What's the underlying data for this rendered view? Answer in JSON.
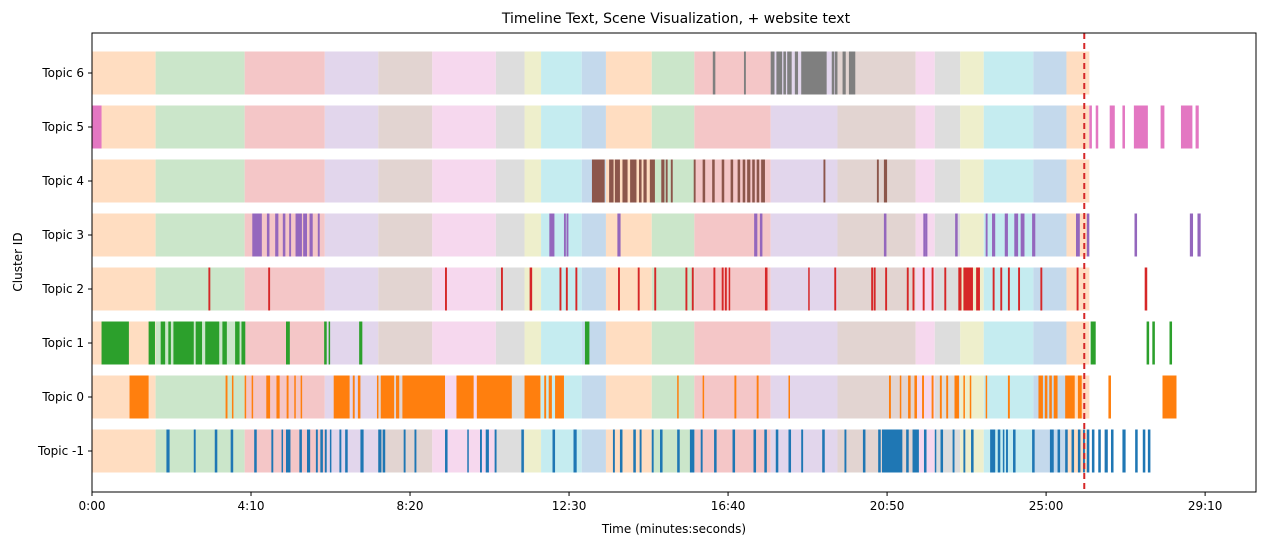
{
  "chart_data": {
    "type": "timeline",
    "title": "Timeline Text, Scene Visualization, + website text",
    "xlabel": "Time (minutes:seconds)",
    "ylabel": "Cluster ID",
    "x_unit": "seconds",
    "xlim": [
      0,
      1830
    ],
    "x_ticks": [
      {
        "value": 0,
        "label": "0:00"
      },
      {
        "value": 250,
        "label": "4:10"
      },
      {
        "value": 500,
        "label": "8:20"
      },
      {
        "value": 750,
        "label": "12:30"
      },
      {
        "value": 1000,
        "label": "16:40"
      },
      {
        "value": 1250,
        "label": "20:50"
      },
      {
        "value": 1500,
        "label": "25:00"
      },
      {
        "value": 1750,
        "label": "29:10"
      }
    ],
    "topics": [
      "Topic -1",
      "Topic 0",
      "Topic 1",
      "Topic 2",
      "Topic 3",
      "Topic 4",
      "Topic 5",
      "Topic 6"
    ],
    "vline": {
      "x": 1560,
      "color": "#d62728",
      "style": "dashed"
    },
    "scene_background": [
      {
        "start": 0,
        "end": 100,
        "color": "#ffddc1"
      },
      {
        "start": 100,
        "end": 240,
        "color": "#cbe6ca"
      },
      {
        "start": 240,
        "end": 366,
        "color": "#f4c6c7"
      },
      {
        "start": 366,
        "end": 450,
        "color": "#e2d6ec"
      },
      {
        "start": 450,
        "end": 535,
        "color": "#e2d4d1"
      },
      {
        "start": 535,
        "end": 635,
        "color": "#f6d8ee"
      },
      {
        "start": 635,
        "end": 680,
        "color": "#dddddd"
      },
      {
        "start": 680,
        "end": 706,
        "color": "#eeefcc"
      },
      {
        "start": 706,
        "end": 770,
        "color": "#c5ecf0"
      },
      {
        "start": 770,
        "end": 808,
        "color": "#c4d9ec"
      },
      {
        "start": 808,
        "end": 880,
        "color": "#ffddc1"
      },
      {
        "start": 880,
        "end": 947,
        "color": "#cbe6ca"
      },
      {
        "start": 947,
        "end": 1067,
        "color": "#f4c6c7"
      },
      {
        "start": 1067,
        "end": 1172,
        "color": "#e2d6ec"
      },
      {
        "start": 1172,
        "end": 1295,
        "color": "#e2d4d1"
      },
      {
        "start": 1295,
        "end": 1325,
        "color": "#f6d8ee"
      },
      {
        "start": 1325,
        "end": 1365,
        "color": "#dddddd"
      },
      {
        "start": 1365,
        "end": 1402,
        "color": "#eeefcc"
      },
      {
        "start": 1402,
        "end": 1480,
        "color": "#c5ecf0"
      },
      {
        "start": 1480,
        "end": 1532,
        "color": "#c4d9ec"
      },
      {
        "start": 1532,
        "end": 1568,
        "color": "#ffddc1"
      }
    ],
    "topic_colors": {
      "Topic -1": "#1f77b4",
      "Topic 0": "#ff7f0e",
      "Topic 1": "#2ca02c",
      "Topic 2": "#d62728",
      "Topic 3": "#9467bd",
      "Topic 4": "#8c564b",
      "Topic 5": "#e377c2",
      "Topic 6": "#7f7f7f"
    },
    "segments": {
      "Topic -1": [
        [
          117,
          122
        ],
        [
          160,
          163
        ],
        [
          193,
          197
        ],
        [
          218,
          222
        ],
        [
          255,
          259
        ],
        [
          282,
          285
        ],
        [
          298,
          300
        ],
        [
          305,
          312
        ],
        [
          326,
          330
        ],
        [
          338,
          343
        ],
        [
          352,
          355
        ],
        [
          359,
          363
        ],
        [
          366,
          369
        ],
        [
          374,
          376
        ],
        [
          389,
          392
        ],
        [
          398,
          402
        ],
        [
          422,
          427
        ],
        [
          450,
          455
        ],
        [
          457,
          461
        ],
        [
          490,
          493
        ],
        [
          507,
          510
        ],
        [
          555,
          559
        ],
        [
          590,
          592
        ],
        [
          610,
          613
        ],
        [
          619,
          624
        ],
        [
          633,
          636
        ],
        [
          675,
          679
        ],
        [
          724,
          728
        ],
        [
          757,
          762
        ],
        [
          819,
          822
        ],
        [
          830,
          834
        ],
        [
          851,
          855
        ],
        [
          861,
          864
        ],
        [
          880,
          883
        ],
        [
          893,
          897
        ],
        [
          920,
          924
        ],
        [
          940,
          947
        ],
        [
          957,
          960
        ],
        [
          978,
          982
        ],
        [
          1007,
          1011
        ],
        [
          1040,
          1044
        ],
        [
          1057,
          1061
        ],
        [
          1075,
          1079
        ],
        [
          1095,
          1099
        ],
        [
          1115,
          1118
        ],
        [
          1148,
          1152
        ],
        [
          1183,
          1186
        ],
        [
          1212,
          1216
        ],
        [
          1236,
          1240
        ],
        [
          1242,
          1274
        ],
        [
          1280,
          1284
        ],
        [
          1290,
          1300
        ],
        [
          1308,
          1312
        ],
        [
          1325,
          1327
        ],
        [
          1334,
          1338
        ],
        [
          1353,
          1356
        ],
        [
          1370,
          1373
        ],
        [
          1382,
          1386
        ],
        [
          1412,
          1420
        ],
        [
          1424,
          1428
        ],
        [
          1432,
          1434
        ],
        [
          1437,
          1440
        ],
        [
          1448,
          1452
        ],
        [
          1478,
          1482
        ],
        [
          1506,
          1512
        ],
        [
          1518,
          1522
        ],
        [
          1530,
          1534
        ],
        [
          1540,
          1544
        ],
        [
          1550,
          1554
        ],
        [
          1558,
          1561
        ],
        [
          1564,
          1568
        ],
        [
          1572,
          1576
        ],
        [
          1582,
          1586
        ],
        [
          1592,
          1597
        ],
        [
          1602,
          1606
        ],
        [
          1620,
          1625
        ],
        [
          1640,
          1644
        ],
        [
          1652,
          1656
        ],
        [
          1660,
          1664
        ]
      ],
      "Topic 0": [
        [
          59,
          89
        ],
        [
          210,
          213
        ],
        [
          220,
          222
        ],
        [
          240,
          242
        ],
        [
          251,
          253
        ],
        [
          274,
          280
        ],
        [
          290,
          295
        ],
        [
          306,
          309
        ],
        [
          318,
          320
        ],
        [
          328,
          330
        ],
        [
          380,
          405
        ],
        [
          410,
          413
        ],
        [
          418,
          422
        ],
        [
          448,
          450
        ],
        [
          454,
          475
        ],
        [
          478,
          483
        ],
        [
          488,
          555
        ],
        [
          573,
          600
        ],
        [
          605,
          660
        ],
        [
          680,
          705
        ],
        [
          711,
          714
        ],
        [
          718,
          723
        ],
        [
          728,
          742
        ],
        [
          920,
          922
        ],
        [
          960,
          962
        ],
        [
          1010,
          1013
        ],
        [
          1045,
          1048
        ],
        [
          1095,
          1097
        ],
        [
          1253,
          1256
        ],
        [
          1270,
          1272
        ],
        [
          1283,
          1287
        ],
        [
          1293,
          1297
        ],
        [
          1305,
          1308
        ],
        [
          1320,
          1323
        ],
        [
          1333,
          1336
        ],
        [
          1343,
          1346
        ],
        [
          1356,
          1363
        ],
        [
          1370,
          1372
        ],
        [
          1380,
          1382
        ],
        [
          1405,
          1407
        ],
        [
          1440,
          1443
        ],
        [
          1488,
          1495
        ],
        [
          1498,
          1502
        ],
        [
          1505,
          1509
        ],
        [
          1512,
          1518
        ],
        [
          1530,
          1545
        ],
        [
          1550,
          1556
        ],
        [
          1598,
          1602
        ],
        [
          1683,
          1705
        ]
      ],
      "Topic 1": [
        [
          15,
          58
        ],
        [
          89,
          99
        ],
        [
          108,
          115
        ],
        [
          120,
          124
        ],
        [
          128,
          160
        ],
        [
          163,
          173
        ],
        [
          178,
          200
        ],
        [
          205,
          212
        ],
        [
          225,
          232
        ],
        [
          235,
          241
        ],
        [
          305,
          311
        ],
        [
          365,
          369
        ],
        [
          372,
          374
        ],
        [
          420,
          425
        ],
        [
          775,
          782
        ],
        [
          1570,
          1578
        ],
        [
          1658,
          1662
        ],
        [
          1667,
          1671
        ],
        [
          1694,
          1698
        ]
      ],
      "Topic 2": [
        [
          183,
          186
        ],
        [
          277,
          280
        ],
        [
          555,
          558
        ],
        [
          643,
          646
        ],
        [
          688,
          692
        ],
        [
          735,
          738
        ],
        [
          745,
          748
        ],
        [
          760,
          763
        ],
        [
          827,
          830
        ],
        [
          858,
          861
        ],
        [
          884,
          887
        ],
        [
          933,
          936
        ],
        [
          943,
          946
        ],
        [
          977,
          980
        ],
        [
          990,
          993
        ],
        [
          995,
          998
        ],
        [
          1001,
          1003
        ],
        [
          1058,
          1062
        ],
        [
          1126,
          1128
        ],
        [
          1167,
          1170
        ],
        [
          1225,
          1228
        ],
        [
          1229,
          1232
        ],
        [
          1247,
          1250
        ],
        [
          1281,
          1284
        ],
        [
          1290,
          1293
        ],
        [
          1306,
          1309
        ],
        [
          1320,
          1323
        ],
        [
          1340,
          1343
        ],
        [
          1362,
          1367
        ],
        [
          1370,
          1385
        ],
        [
          1390,
          1396
        ],
        [
          1416,
          1419
        ],
        [
          1428,
          1431
        ],
        [
          1440,
          1443
        ],
        [
          1456,
          1459
        ],
        [
          1491,
          1494
        ],
        [
          1548,
          1551
        ],
        [
          1655,
          1659
        ]
      ],
      "Topic 3": [
        [
          252,
          267
        ],
        [
          275,
          279
        ],
        [
          288,
          293
        ],
        [
          300,
          304
        ],
        [
          310,
          313
        ],
        [
          320,
          330
        ],
        [
          332,
          338
        ],
        [
          342,
          347
        ],
        [
          355,
          358
        ],
        [
          719,
          727
        ],
        [
          742,
          745
        ],
        [
          746,
          749
        ],
        [
          826,
          831
        ],
        [
          1041,
          1046
        ],
        [
          1050,
          1054
        ],
        [
          1245,
          1249
        ],
        [
          1307,
          1311
        ],
        [
          1311,
          1313
        ],
        [
          1357,
          1361
        ],
        [
          1405,
          1408
        ],
        [
          1415,
          1420
        ],
        [
          1435,
          1440
        ],
        [
          1450,
          1456
        ],
        [
          1460,
          1466
        ],
        [
          1478,
          1483
        ],
        [
          1547,
          1553
        ],
        [
          1564,
          1568
        ],
        [
          1639,
          1643
        ],
        [
          1726,
          1731
        ],
        [
          1738,
          1743
        ]
      ],
      "Topic 4": [
        [
          786,
          806
        ],
        [
          813,
          820
        ],
        [
          822,
          830
        ],
        [
          834,
          842
        ],
        [
          846,
          856
        ],
        [
          860,
          864
        ],
        [
          867,
          872
        ],
        [
          877,
          885
        ],
        [
          895,
          900
        ],
        [
          902,
          905
        ],
        [
          910,
          913
        ],
        [
          946,
          949
        ],
        [
          960,
          964
        ],
        [
          975,
          979
        ],
        [
          990,
          994
        ],
        [
          1004,
          1008
        ],
        [
          1015,
          1019
        ],
        [
          1023,
          1027
        ],
        [
          1030,
          1035
        ],
        [
          1038,
          1042
        ],
        [
          1045,
          1049
        ],
        [
          1052,
          1058
        ],
        [
          1150,
          1153
        ],
        [
          1234,
          1237
        ],
        [
          1245,
          1250
        ]
      ],
      "Topic 5": [
        [
          0,
          15
        ],
        [
          1568,
          1572
        ],
        [
          1578,
          1582
        ],
        [
          1600,
          1608
        ],
        [
          1620,
          1624
        ],
        [
          1638,
          1660
        ],
        [
          1680,
          1686
        ],
        [
          1712,
          1730
        ],
        [
          1735,
          1740
        ]
      ],
      "Topic 6": [
        [
          976,
          980
        ],
        [
          1025,
          1028
        ],
        [
          1067,
          1073
        ],
        [
          1076,
          1085
        ],
        [
          1087,
          1091
        ],
        [
          1093,
          1100
        ],
        [
          1105,
          1110
        ],
        [
          1115,
          1155
        ],
        [
          1163,
          1167
        ],
        [
          1168,
          1172
        ],
        [
          1180,
          1185
        ],
        [
          1190,
          1200
        ]
      ]
    }
  }
}
